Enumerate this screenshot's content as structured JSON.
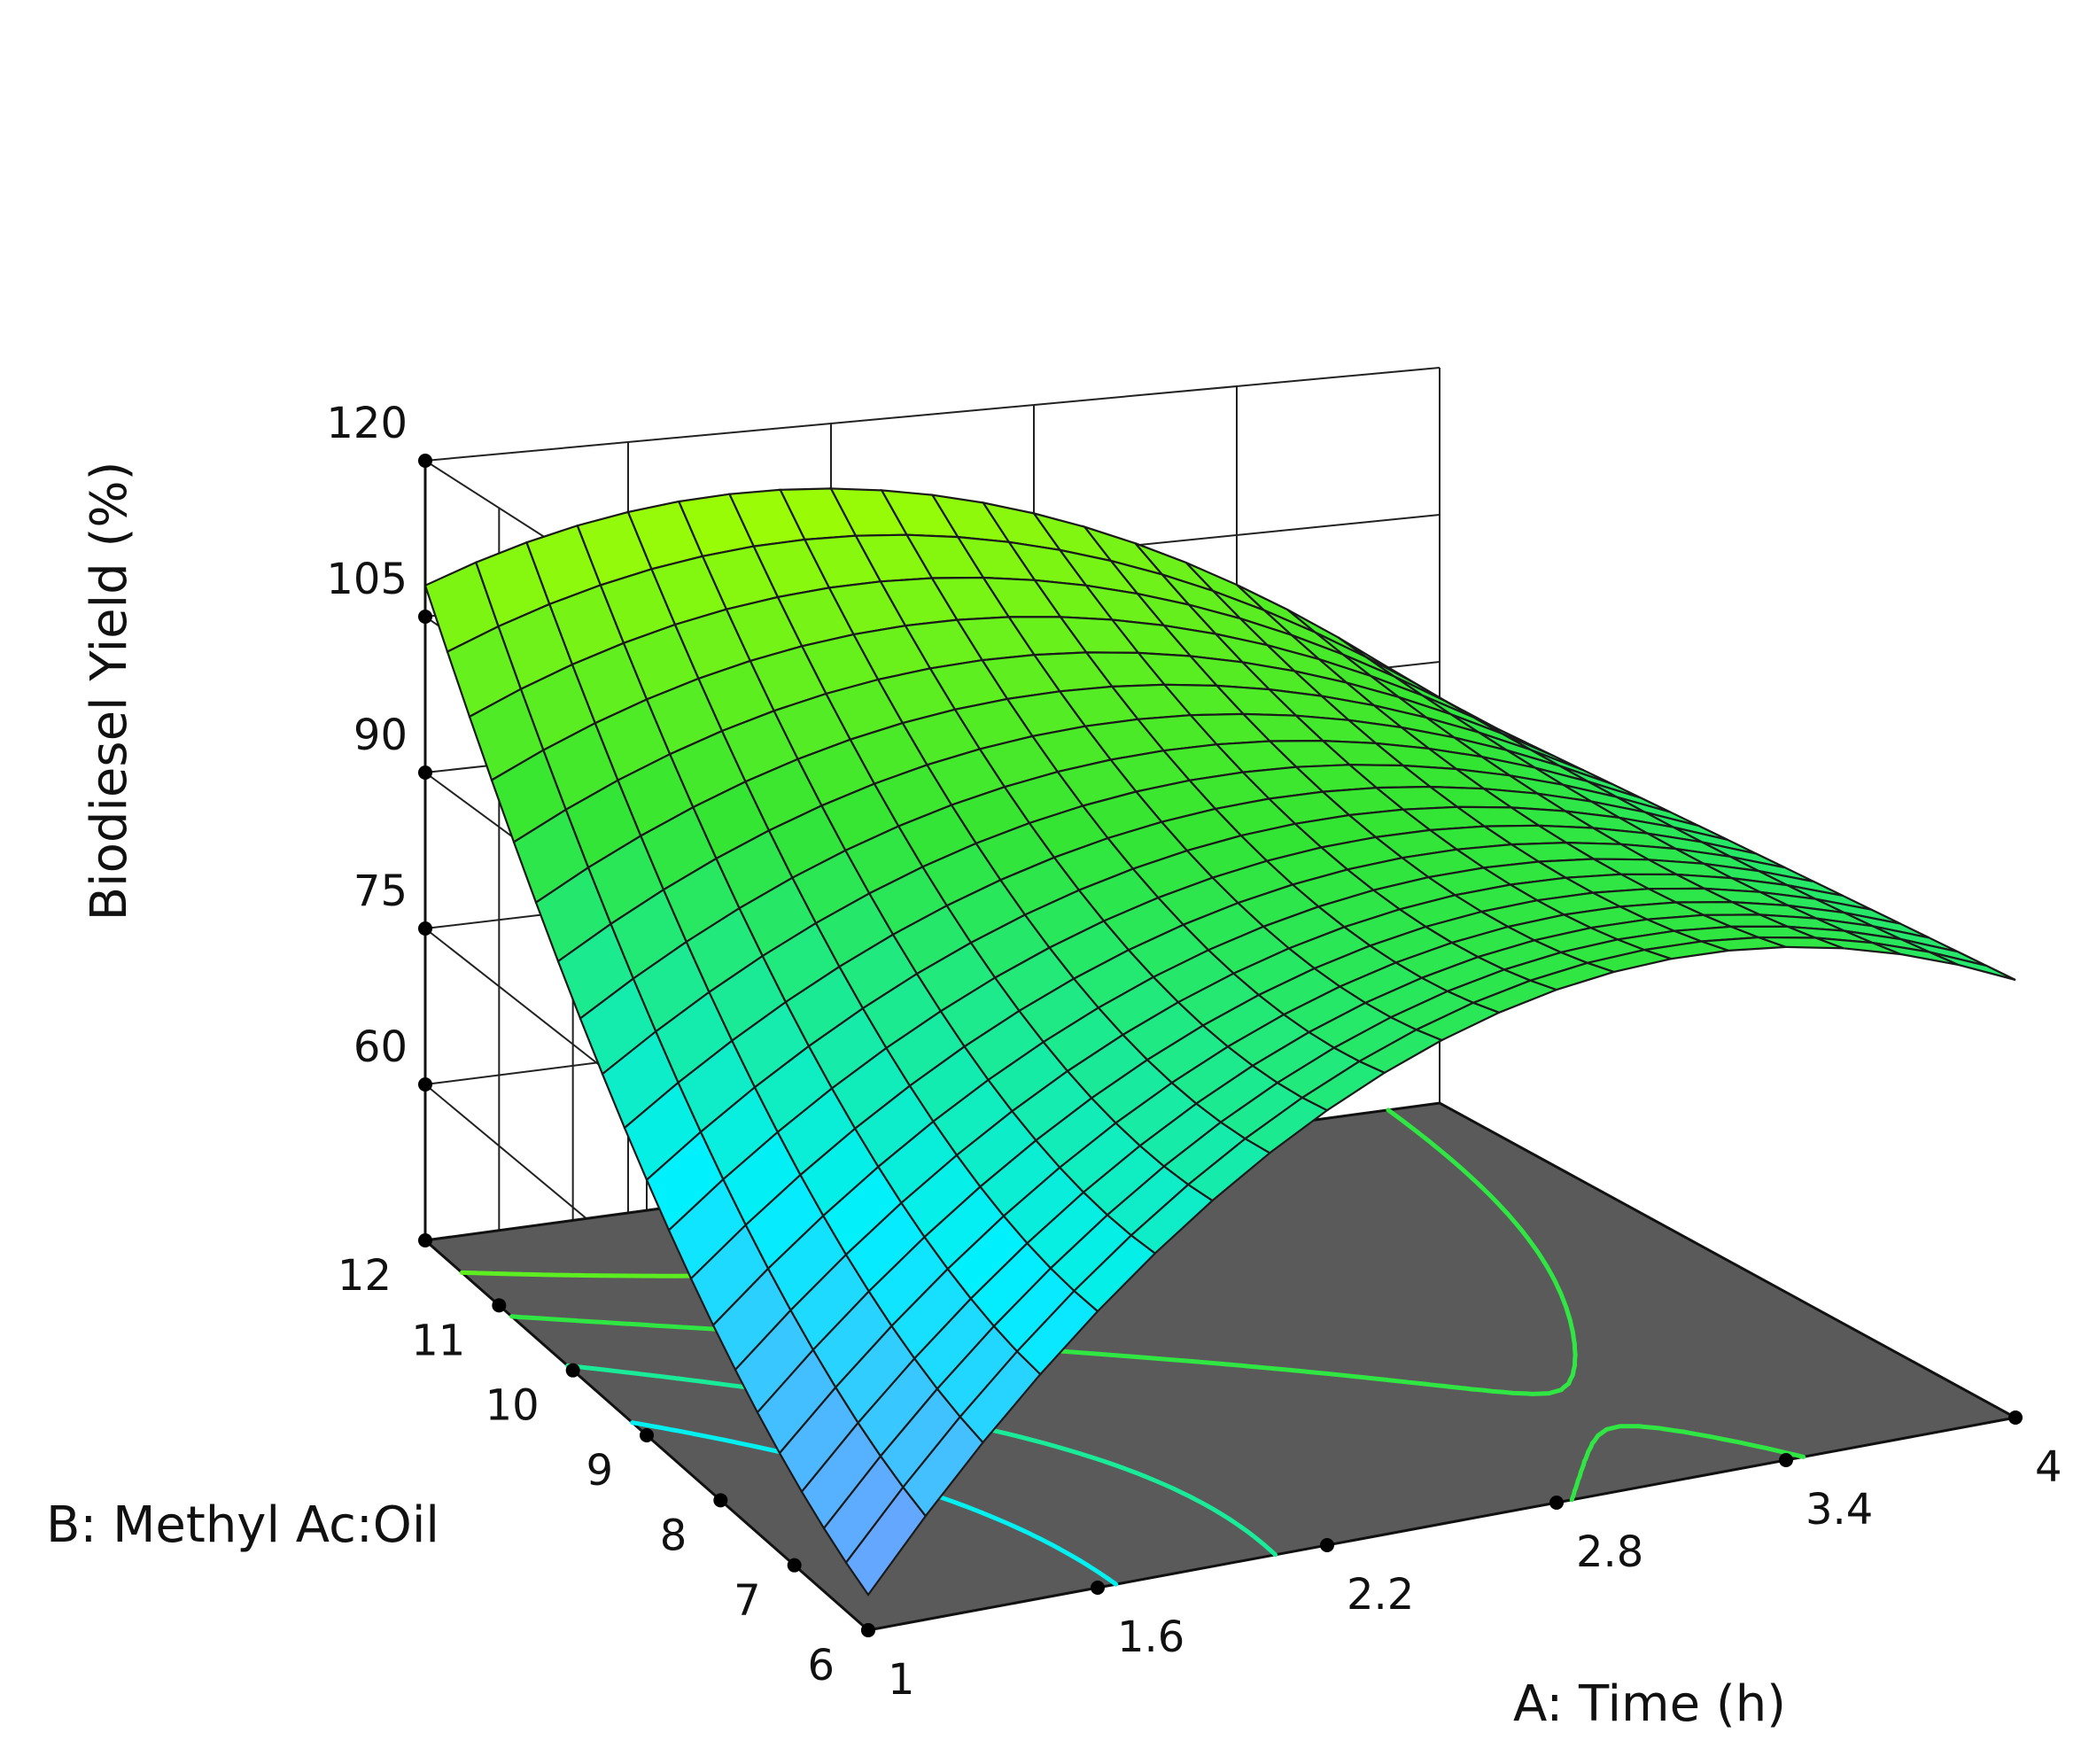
{
  "chart_data": {
    "type": "surface",
    "zlabel": "Biodiesel Yield (%)",
    "xlabel": "A: Time (h)",
    "ylabel": "B: Methyl Ac:Oil",
    "z_ticks": [
      "60",
      "75",
      "90",
      "105",
      "120"
    ],
    "x_ticks": [
      "1",
      "1.6",
      "2.2",
      "2.8",
      "3.4",
      "4"
    ],
    "y_ticks": [
      "6",
      "7",
      "8",
      "9",
      "10",
      "11",
      "12"
    ],
    "x_range": [
      1,
      4
    ],
    "y_range": [
      6,
      12
    ],
    "z_range": [
      45,
      120
    ],
    "grid": true,
    "floor_color": "#5a5a5a",
    "colormap": [
      "#8a8cff",
      "#00f0ff",
      "#33e533",
      "#a8ff00"
    ],
    "surface_samples": {
      "x": [
        1,
        2.5,
        4
      ],
      "y": [
        6,
        9,
        12
      ],
      "z": [
        [
          48,
          87,
          84
        ],
        [
          68,
          91,
          85
        ],
        [
          108,
          112,
          86
        ]
      ]
    },
    "contour_levels": [
      70,
      80,
      90,
      100
    ]
  }
}
